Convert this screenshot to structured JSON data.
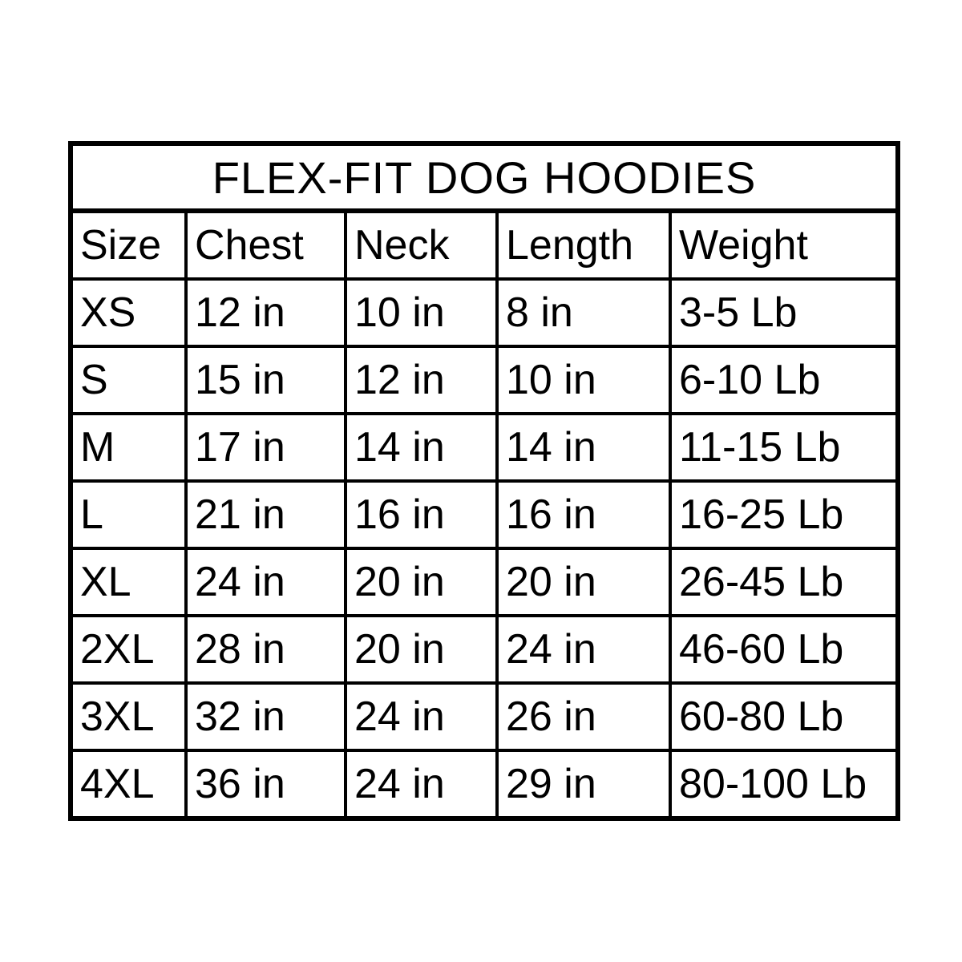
{
  "chart_data": {
    "type": "table",
    "title": "FLEX-FIT DOG HOODIES",
    "columns": [
      "Size",
      "Chest",
      "Neck",
      "Length",
      "Weight"
    ],
    "rows": [
      [
        "XS",
        "12 in",
        "10 in",
        "8 in",
        "3-5 Lb"
      ],
      [
        "S",
        "15 in",
        "12 in",
        "10 in",
        "6-10 Lb"
      ],
      [
        "M",
        "17 in",
        "14 in",
        "14 in",
        "11-15 Lb"
      ],
      [
        "L",
        "21 in",
        "16 in",
        "16 in",
        "16-25 Lb"
      ],
      [
        "XL",
        "24 in",
        "20 in",
        "20 in",
        "26-45 Lb"
      ],
      [
        "2XL",
        "28 in",
        "20 in",
        "24 in",
        "46-60 Lb"
      ],
      [
        "3XL",
        "32 in",
        "24 in",
        "26 in",
        "60-80 Lb"
      ],
      [
        "4XL",
        "36 in",
        "24 in",
        "29 in",
        "80-100 Lb"
      ]
    ],
    "units": {
      "dimensions": "in",
      "weight": "Lb"
    },
    "colors": {
      "border": "#000000",
      "background": "#ffffff",
      "text": "#000000"
    },
    "layout": {
      "grid": "all-borders",
      "title_position": "top-center"
    }
  }
}
